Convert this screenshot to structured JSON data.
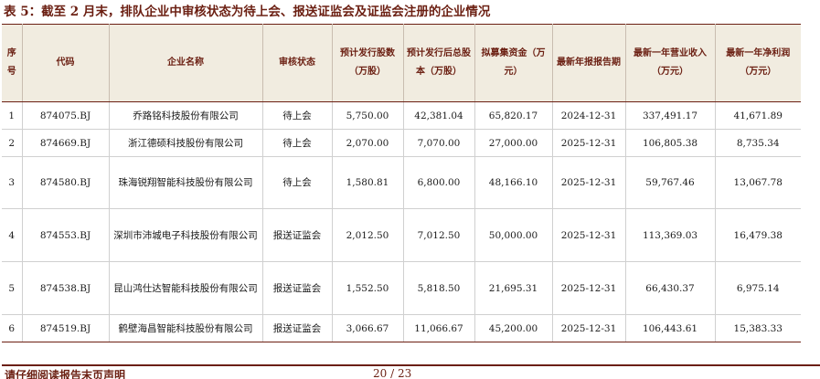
{
  "title": "表 5：截至 2 月末，排队企业中审核状态为待上会、报送证监会及证监会注册的企业情况",
  "table": {
    "headers": [
      "序号",
      "代码",
      "企业名称",
      "审核状态",
      "预计发行股数（万股）",
      "预计发行后总股本（万股）",
      "拟募集资金（万元）",
      "最新年报报告期",
      "最新一年营业收入（万元）",
      "最新一年净利润（万元）"
    ],
    "rows": [
      [
        "1",
        "874075.BJ",
        "乔路铭科技股份有限公司",
        "待上会",
        "5,750.00",
        "42,381.04",
        "65,820.17",
        "2024-12-31",
        "337,491.17",
        "41,671.89"
      ],
      [
        "2",
        "874669.BJ",
        "浙江德硕科技股份有限公司",
        "待上会",
        "2,070.00",
        "7,070.00",
        "27,000.00",
        "2025-12-31",
        "106,805.38",
        "8,735.34"
      ],
      [
        "3",
        "874580.BJ",
        "珠海锐翔智能科技股份有限公司",
        "待上会",
        "1,580.81",
        "6,800.00",
        "48,166.10",
        "2025-12-31",
        "59,767.46",
        "13,067.78"
      ],
      [
        "4",
        "874553.BJ",
        "深圳市沛城电子科技股份有限公司",
        "报送证监会",
        "2,012.50",
        "7,012.50",
        "50,000.00",
        "2025-12-31",
        "113,369.03",
        "16,479.38"
      ],
      [
        "5",
        "874538.BJ",
        "昆山鸿仕达智能科技股份有限公司",
        "报送证监会",
        "1,552.50",
        "5,818.50",
        "21,695.31",
        "2025-12-31",
        "66,430.37",
        "6,975.14"
      ],
      [
        "6",
        "874519.BJ",
        "鹤壁海昌智能科技股份有限公司",
        "报送证监会",
        "3,066.67",
        "11,066.67",
        "45,200.00",
        "2025-12-31",
        "106,443.61",
        "15,383.33"
      ]
    ]
  },
  "footer": {
    "disclaimer": "请仔细阅读报告末页声明",
    "page": "20 / 23"
  },
  "colors": {
    "accent": "#6b1f12",
    "header_bg": "#f1ece0"
  }
}
